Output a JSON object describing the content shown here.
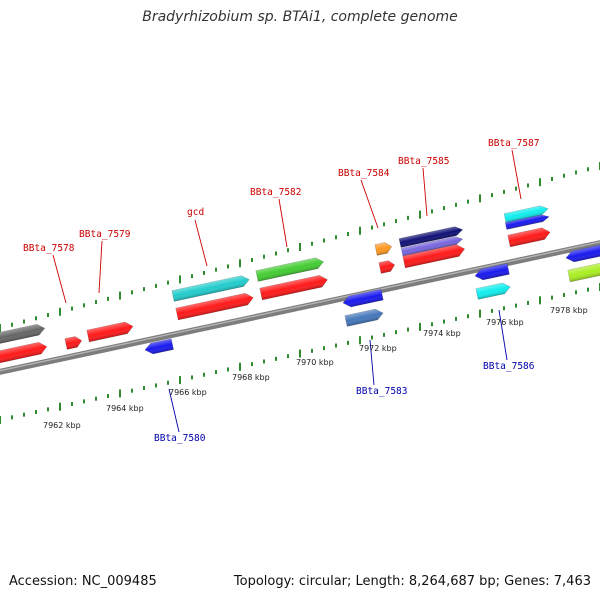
{
  "title": "Bradyrhizobium sp. BTAi1, complete genome",
  "footer": {
    "accession": "Accession: NC_009485",
    "info": "Topology: circular; Length: 8,264,687 bp; Genes: 7,463"
  },
  "scale_labels": [
    "7962 kbp",
    "7964 kbp",
    "7966 kbp",
    "7968 kbp",
    "7970 kbp",
    "7972 kbp",
    "7974 kbp",
    "7976 kbp",
    "7978 kbp"
  ],
  "forward_labels": [
    "BBta_7578",
    "BBta_7579",
    "gcd",
    "BBta_7582",
    "BBta_7584",
    "BBta_7585",
    "BBta_7587"
  ],
  "reverse_labels": [
    "BBta_7580",
    "BBta_7583",
    "BBta_7586"
  ],
  "colors": {
    "backbone": "#8a8a8a",
    "tick": "#2e8b2e",
    "forward_label": "#cc0000",
    "reverse_label": "#0000aa",
    "red": "#ff1a1a",
    "blue": "#1a1aee",
    "cyan": "#22cccc",
    "green": "#44cc33",
    "navy": "#111177",
    "purple": "#7766dd",
    "orange": "#ff9922",
    "steelblue": "#4477bb",
    "aqua": "#11eeee",
    "lime": "#aaee22",
    "gray": "#666666"
  }
}
